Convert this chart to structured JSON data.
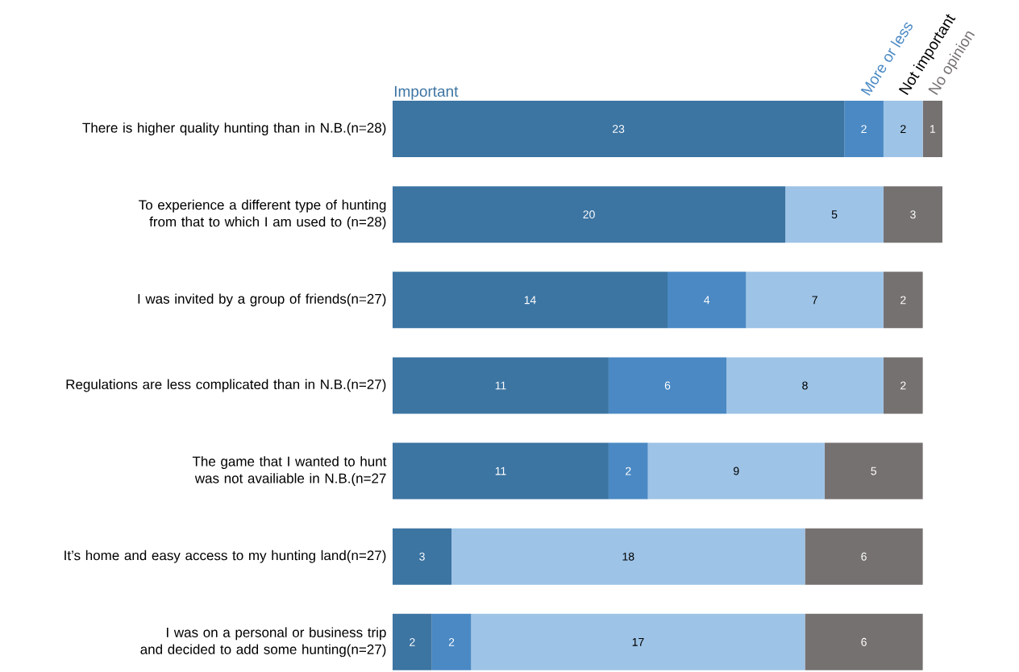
{
  "chart_data": {
    "type": "bar",
    "orientation": "horizontal",
    "stacked": true,
    "data_labels": true,
    "categories": [
      "There is higher quality hunting than in N.B.(n=28)",
      "To experience a different type of hunting from that to which I am used to (n=28)",
      "I was invited by a group of friends(n=27)",
      "Regulations are less complicated than in N.B.(n=27)",
      "The game that I wanted to hunt was not availiable in N.B.(n=27",
      "It’s home and easy access to my hunting land(n=27)",
      "I was on a personal or business trip and decided to add some hunting(n=27)"
    ],
    "series": [
      {
        "name": "Important",
        "color": "#3c74a2",
        "values": [
          23,
          20,
          14,
          11,
          11,
          3,
          2
        ]
      },
      {
        "name": "More or less",
        "color": "#4a89c4",
        "values": [
          2,
          null,
          4,
          6,
          2,
          null,
          2
        ]
      },
      {
        "name": "Not important",
        "color": "#9dc3e6",
        "values": [
          2,
          5,
          7,
          8,
          9,
          18,
          17
        ]
      },
      {
        "name": "No opinion",
        "color": "#767171",
        "values": [
          1,
          3,
          2,
          2,
          5,
          6,
          6
        ]
      }
    ]
  }
}
